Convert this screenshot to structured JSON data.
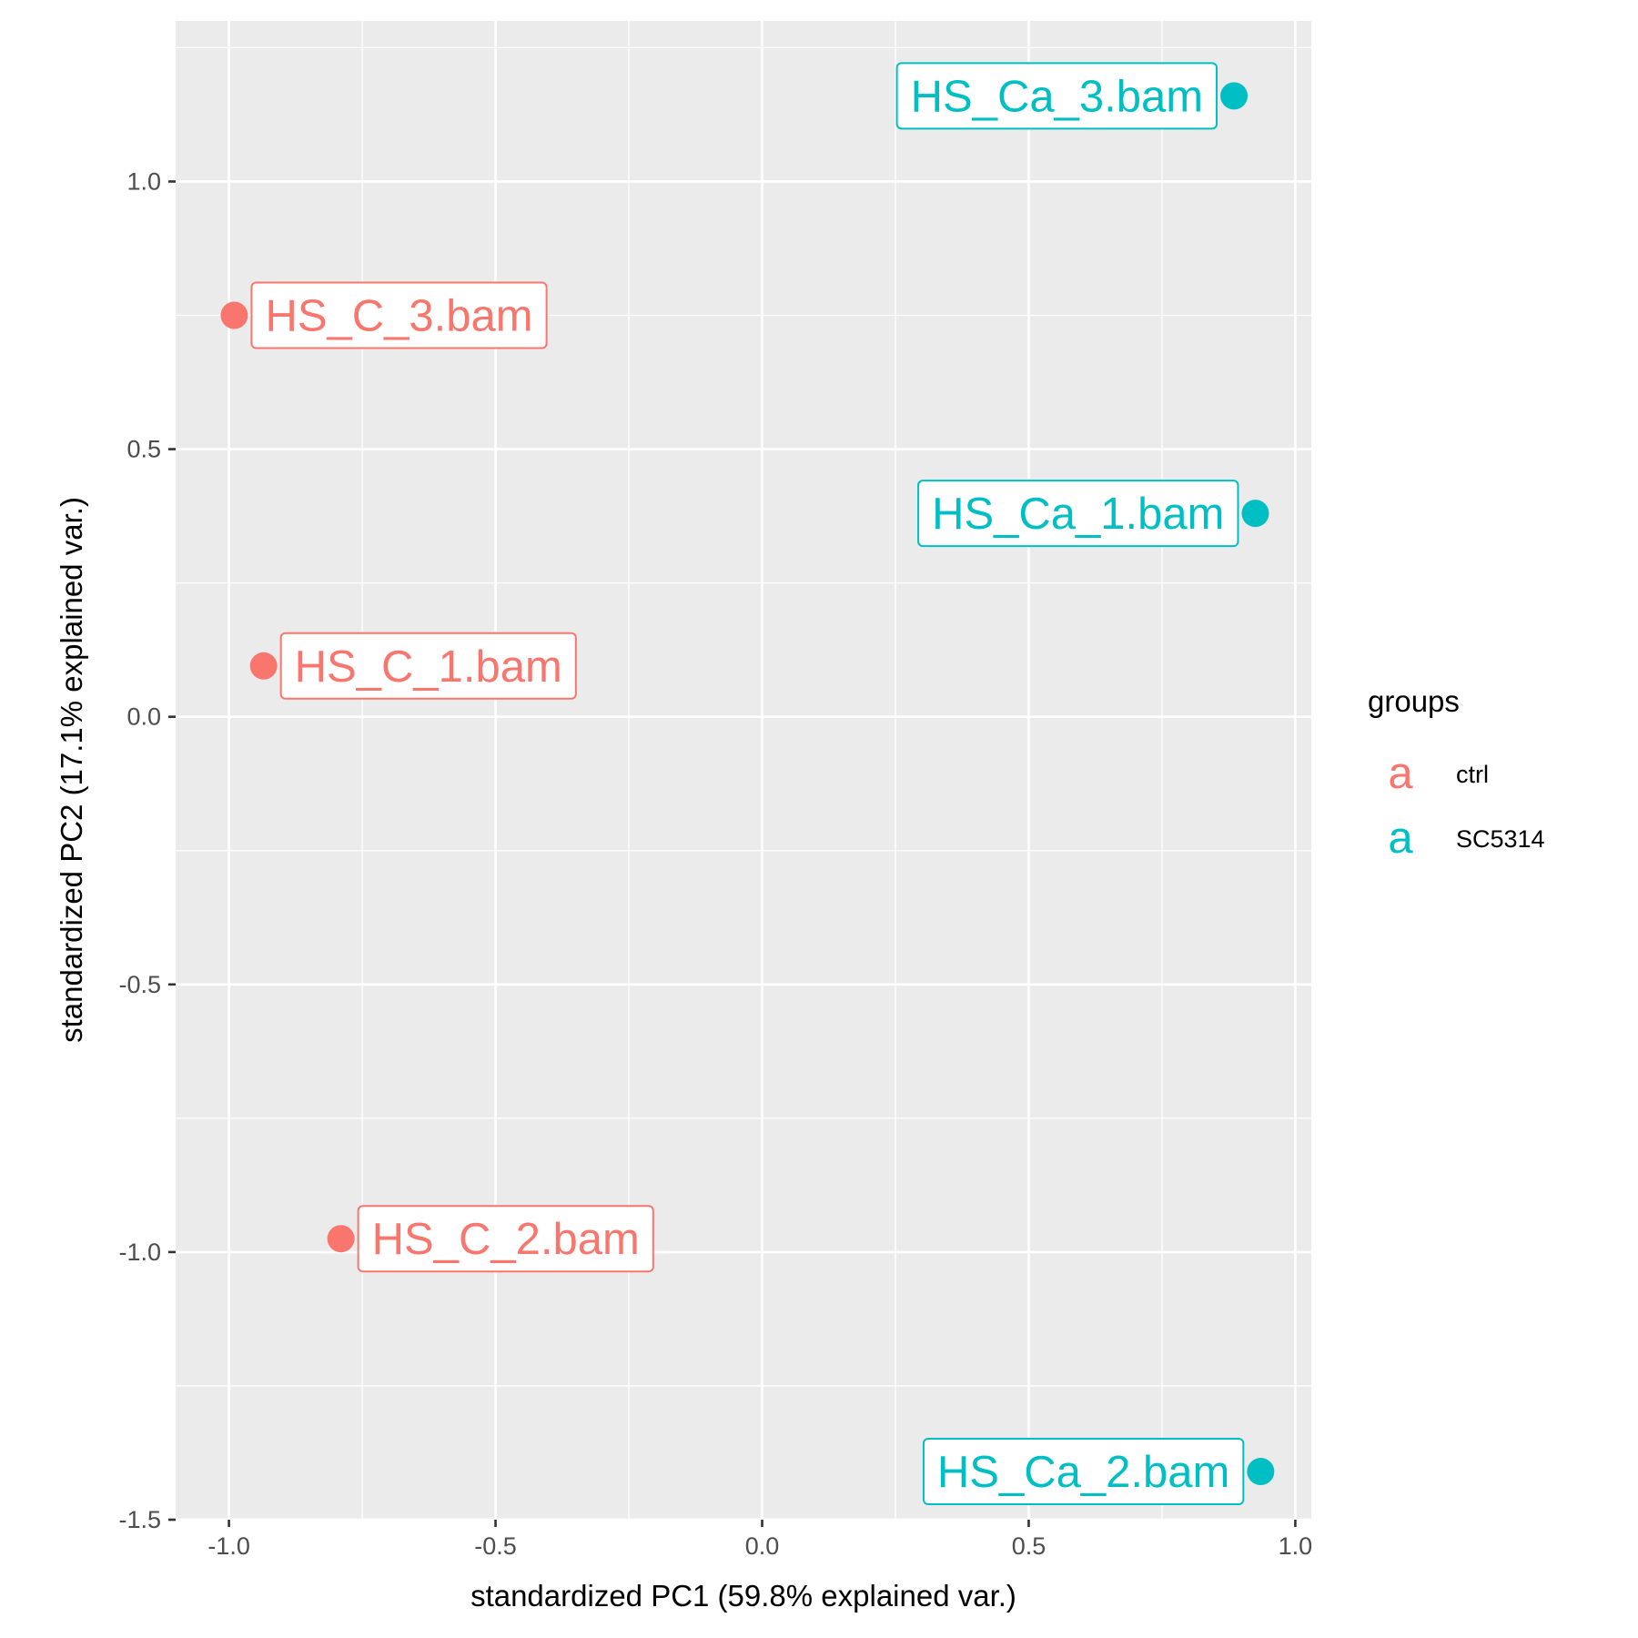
{
  "chart_data": {
    "type": "scatter",
    "xlabel": "standardized PC1 (59.8% explained var.)",
    "ylabel": "standardized PC2 (17.1% explained var.)",
    "xlim": [
      -1.1,
      1.03
    ],
    "ylim": [
      -1.5,
      1.3
    ],
    "x_ticks": [
      -1.0,
      -0.5,
      0.0,
      0.5,
      1.0
    ],
    "x_tick_labels": [
      "-1.0",
      "-0.5",
      "0.0",
      "0.5",
      "1.0"
    ],
    "y_ticks": [
      -1.5,
      -1.0,
      -0.5,
      0.0,
      0.5,
      1.0
    ],
    "y_tick_labels": [
      "-1.5",
      "-1.0",
      "-0.5",
      "0.0",
      "0.5",
      "1.0"
    ],
    "grid": true,
    "legend": {
      "title": "groups",
      "placement": "right",
      "key_glyph": "a",
      "entries": [
        {
          "label": "ctrl",
          "color": "#F8766D"
        },
        {
          "label": "SC5314",
          "color": "#00BFC4"
        }
      ]
    },
    "series": [
      {
        "name": "ctrl",
        "color": "#F8766D",
        "points": [
          {
            "label": "HS_C_3.bam",
            "x": -0.99,
            "y": 0.75,
            "label_side": "right"
          },
          {
            "label": "HS_C_1.bam",
            "x": -0.935,
            "y": 0.095,
            "label_side": "right"
          },
          {
            "label": "HS_C_2.bam",
            "x": -0.79,
            "y": -0.975,
            "label_side": "right"
          }
        ]
      },
      {
        "name": "SC5314",
        "color": "#00BFC4",
        "points": [
          {
            "label": "HS_Ca_3.bam",
            "x": 0.885,
            "y": 1.16,
            "label_side": "left"
          },
          {
            "label": "HS_Ca_1.bam",
            "x": 0.925,
            "y": 0.38,
            "label_side": "left"
          },
          {
            "label": "HS_Ca_2.bam",
            "x": 0.935,
            "y": -1.41,
            "label_side": "left"
          }
        ]
      }
    ]
  }
}
